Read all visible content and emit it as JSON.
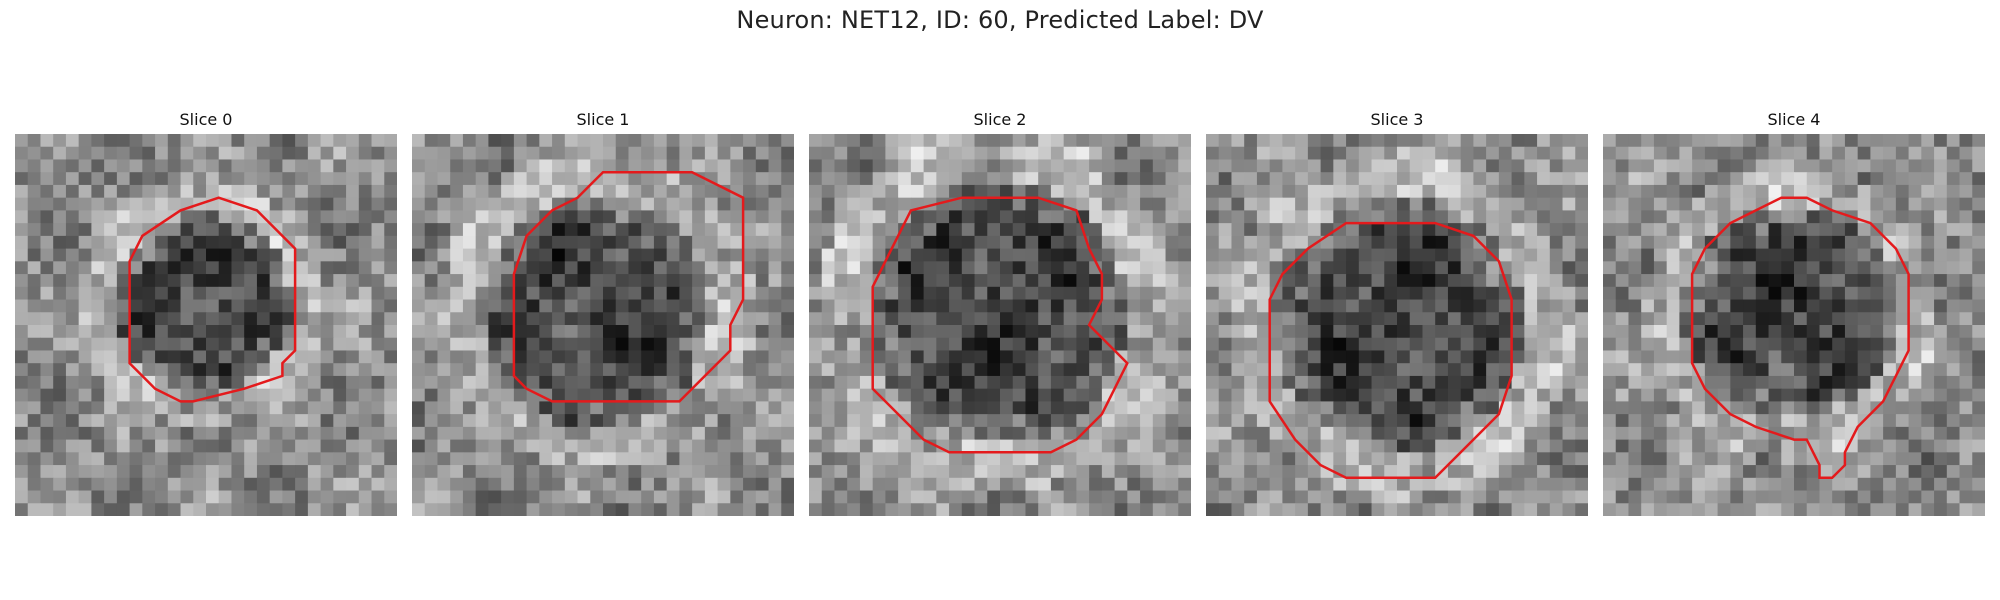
{
  "figure": {
    "title": "Neuron: NET12, ID: 60, Predicted Label: DV",
    "contour_color": "#e41a1c"
  },
  "slices": [
    {
      "title": "Slice 0",
      "image": "grayscale-microscopy-patch"
    },
    {
      "title": "Slice 1",
      "image": "grayscale-microscopy-patch"
    },
    {
      "title": "Slice 2",
      "image": "grayscale-microscopy-patch"
    },
    {
      "title": "Slice 3",
      "image": "grayscale-microscopy-patch"
    },
    {
      "title": "Slice 4",
      "image": "grayscale-microscopy-patch"
    }
  ]
}
